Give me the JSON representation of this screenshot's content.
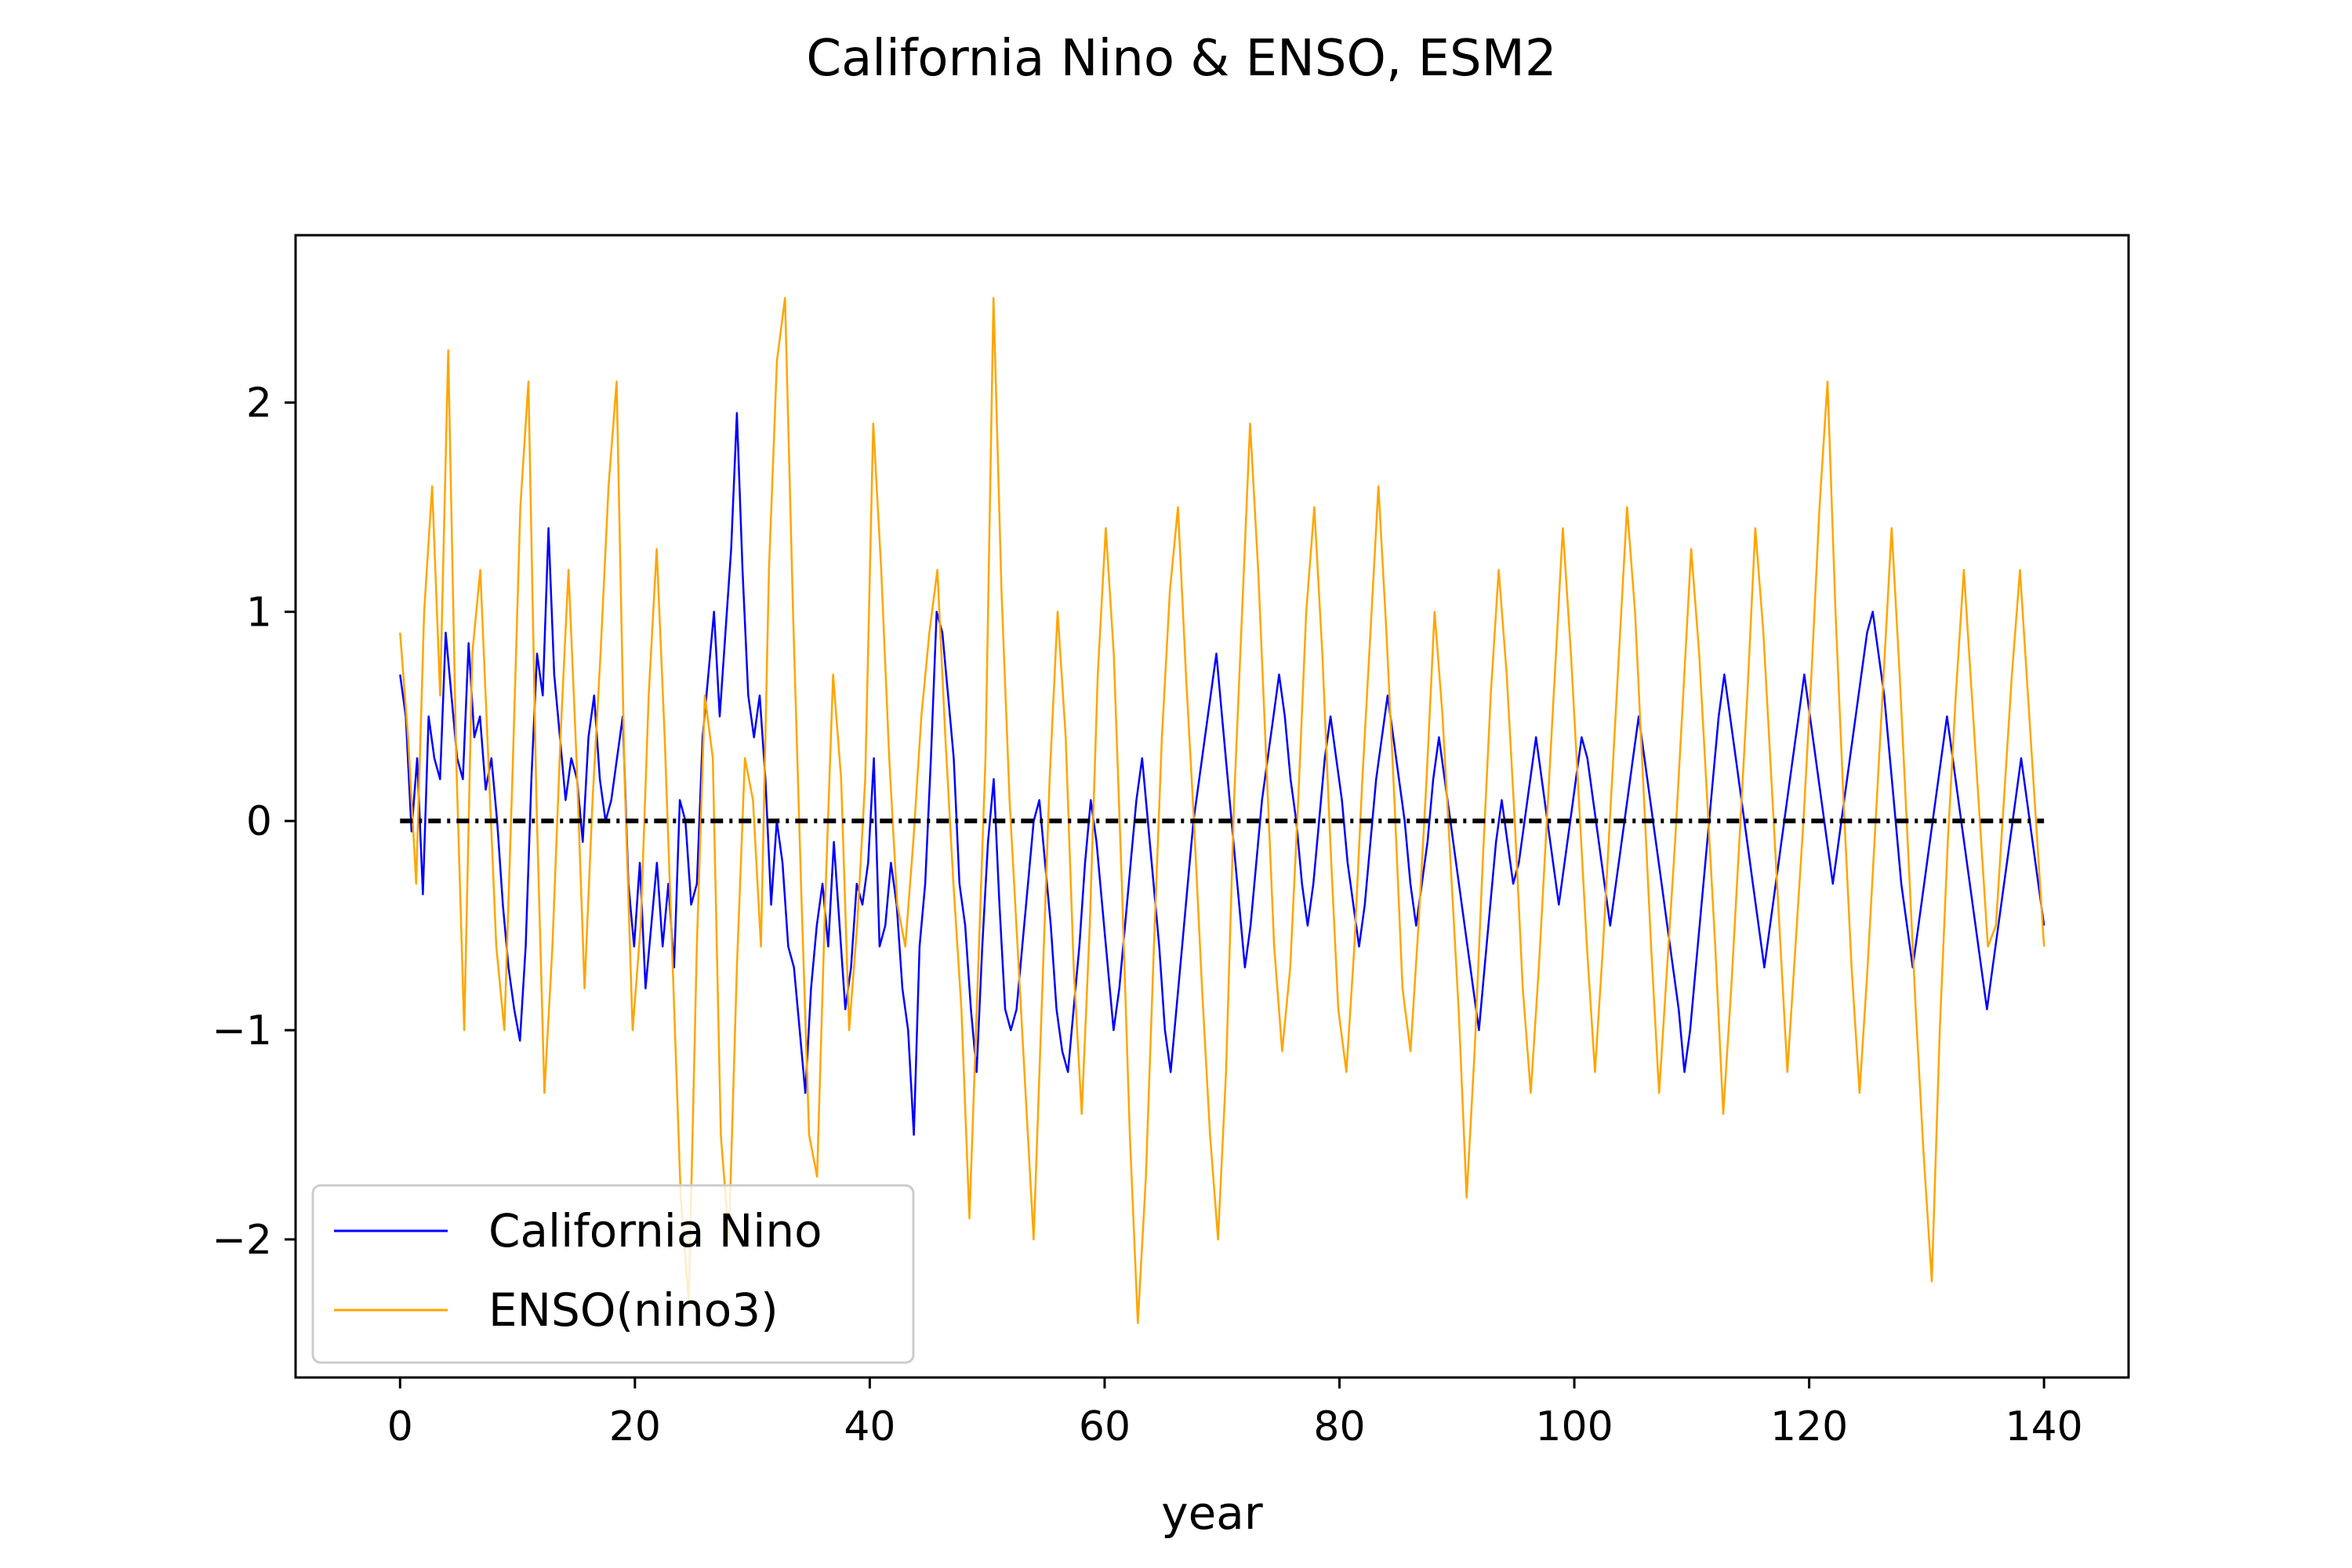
{
  "chart_data": {
    "type": "line",
    "title": "California Nino & ENSO, ESM2",
    "xlabel": "year",
    "ylabel": "",
    "xlim": [
      -8.9,
      147.2
    ],
    "ylim": [
      -2.66,
      2.8
    ],
    "x_ticks": [
      0,
      20,
      40,
      60,
      80,
      100,
      120,
      140
    ],
    "x_tick_labels": [
      "0",
      "20",
      "40",
      "60",
      "80",
      "100",
      "120",
      "140"
    ],
    "y_ticks": [
      -2,
      -1,
      0,
      1,
      2
    ],
    "y_tick_labels": [
      "−2",
      "−1",
      "0",
      "1",
      "2"
    ],
    "grid": false,
    "legend_position": "lower-left",
    "x_step_years": 0.5,
    "series": [
      {
        "name": "California Nino",
        "color": "#0000ff",
        "values": [
          0.7,
          0.5,
          -0.05,
          0.3,
          -0.35,
          0.5,
          0.3,
          0.2,
          0.9,
          0.6,
          0.3,
          0.2,
          0.85,
          0.4,
          0.5,
          0.15,
          0.3,
          0.0,
          -0.4,
          -0.7,
          -0.9,
          -1.05,
          -0.6,
          0.2,
          0.8,
          0.6,
          1.4,
          0.7,
          0.4,
          0.1,
          0.3,
          0.2,
          -0.1,
          0.4,
          0.6,
          0.2,
          0.0,
          0.1,
          0.3,
          0.5,
          -0.3,
          -0.6,
          -0.2,
          -0.8,
          -0.5,
          -0.2,
          -0.6,
          -0.3,
          -0.7,
          0.1,
          0.0,
          -0.4,
          -0.3,
          0.4,
          0.7,
          1.0,
          0.5,
          0.9,
          1.3,
          1.95,
          1.2,
          0.6,
          0.4,
          0.6,
          0.2,
          -0.4,
          0.0,
          -0.2,
          -0.6,
          -0.7,
          -1.0,
          -1.3,
          -0.8,
          -0.5,
          -0.3,
          -0.6,
          -0.1,
          -0.5,
          -0.9,
          -0.7,
          -0.3,
          -0.4,
          -0.2,
          0.3,
          -0.6,
          -0.5,
          -0.2,
          -0.4,
          -0.8,
          -1.0,
          -1.5,
          -0.6,
          -0.3,
          0.3,
          1.0,
          0.9,
          0.6,
          0.3,
          -0.3,
          -0.5,
          -0.9,
          -1.2,
          -0.6,
          -0.1,
          0.2,
          -0.4,
          -0.9,
          -1.0,
          -0.9,
          -0.6,
          -0.3,
          0.0,
          0.1,
          -0.2,
          -0.5,
          -0.9,
          -1.1,
          -1.2,
          -0.9,
          -0.6,
          -0.2,
          0.1,
          -0.1,
          -0.4,
          -0.7,
          -1.0,
          -0.8,
          -0.5,
          -0.2,
          0.1,
          0.3,
          0.0,
          -0.3,
          -0.6,
          -1.0,
          -1.2,
          -0.9,
          -0.6,
          -0.3,
          0.0,
          0.2,
          0.4,
          0.6,
          0.8,
          0.5,
          0.2,
          -0.1,
          -0.4,
          -0.7,
          -0.5,
          -0.2,
          0.1,
          0.3,
          0.5,
          0.7,
          0.5,
          0.2,
          0.0,
          -0.3,
          -0.5,
          -0.3,
          0.0,
          0.3,
          0.5,
          0.3,
          0.1,
          -0.2,
          -0.4,
          -0.6,
          -0.4,
          -0.1,
          0.2,
          0.4,
          0.6,
          0.4,
          0.2,
          0.0,
          -0.3,
          -0.5,
          -0.3,
          -0.1,
          0.2,
          0.4,
          0.2,
          0.0,
          -0.2,
          -0.4,
          -0.6,
          -0.8,
          -1.0,
          -0.7,
          -0.4,
          -0.1,
          0.1,
          -0.1,
          -0.3,
          -0.2,
          0.0,
          0.2,
          0.4,
          0.2,
          0.0,
          -0.2,
          -0.4,
          -0.2,
          0.0,
          0.2,
          0.4,
          0.3,
          0.1,
          -0.1,
          -0.3,
          -0.5,
          -0.3,
          -0.1,
          0.1,
          0.3,
          0.5,
          0.3,
          0.1,
          -0.1,
          -0.3,
          -0.5,
          -0.7,
          -0.9,
          -1.2,
          -1.0,
          -0.7,
          -0.4,
          -0.1,
          0.2,
          0.5,
          0.7,
          0.5,
          0.3,
          0.1,
          -0.1,
          -0.3,
          -0.5,
          -0.7,
          -0.5,
          -0.3,
          -0.1,
          0.1,
          0.3,
          0.5,
          0.7,
          0.5,
          0.3,
          0.1,
          -0.1,
          -0.3,
          -0.1,
          0.1,
          0.3,
          0.5,
          0.7,
          0.9,
          1.0,
          0.8,
          0.6,
          0.3,
          0.0,
          -0.3,
          -0.5,
          -0.7,
          -0.5,
          -0.3,
          -0.1,
          0.1,
          0.3,
          0.5,
          0.3,
          0.1,
          -0.1,
          -0.3,
          -0.5,
          -0.7,
          -0.9,
          -0.7,
          -0.5,
          -0.3,
          -0.1,
          0.1,
          0.3,
          0.1,
          -0.1,
          -0.3,
          -0.5
        ]
      },
      {
        "name": "ENSO(nino3)",
        "color": "#ffa500",
        "values": [
          0.9,
          0.4,
          -0.3,
          1.0,
          1.6,
          0.6,
          2.25,
          0.3,
          -1.0,
          0.8,
          1.2,
          0.3,
          -0.6,
          -1.0,
          0.2,
          1.5,
          2.1,
          0.1,
          -1.3,
          -0.6,
          0.4,
          1.2,
          0.3,
          -0.8,
          0.1,
          0.8,
          1.6,
          2.1,
          0.2,
          -1.0,
          -0.5,
          0.6,
          1.3,
          0.4,
          -0.7,
          -1.8,
          -2.3,
          -0.6,
          0.6,
          0.3,
          -1.5,
          -2.0,
          -0.7,
          0.3,
          0.1,
          -0.6,
          1.2,
          2.2,
          2.5,
          1.0,
          -0.3,
          -1.5,
          -1.7,
          -0.4,
          0.7,
          0.2,
          -1.0,
          -0.5,
          0.2,
          1.9,
          1.2,
          0.3,
          -0.4,
          -0.6,
          -0.1,
          0.5,
          0.9,
          1.2,
          0.4,
          -0.3,
          -0.9,
          -1.9,
          -0.8,
          0.3,
          2.5,
          1.1,
          0.1,
          -0.6,
          -1.3,
          -2.0,
          -0.9,
          0.2,
          1.0,
          0.4,
          -0.7,
          -1.4,
          -0.5,
          0.7,
          1.4,
          0.8,
          -0.3,
          -1.5,
          -2.4,
          -1.7,
          -0.6,
          0.4,
          1.1,
          1.5,
          0.7,
          0.0,
          -0.8,
          -1.5,
          -2.0,
          -1.2,
          0.1,
          1.0,
          1.9,
          1.2,
          0.3,
          -0.6,
          -1.1,
          -0.7,
          0.1,
          1.0,
          1.5,
          0.8,
          -0.1,
          -0.9,
          -1.2,
          -0.6,
          0.2,
          0.9,
          1.6,
          0.9,
          0.1,
          -0.8,
          -1.1,
          -0.5,
          0.2,
          1.0,
          0.5,
          -0.2,
          -0.9,
          -1.8,
          -1.1,
          -0.2,
          0.6,
          1.2,
          0.7,
          0.0,
          -0.8,
          -1.3,
          -0.7,
          0.0,
          0.7,
          1.4,
          0.8,
          0.1,
          -0.6,
          -1.2,
          -0.6,
          0.1,
          0.8,
          1.5,
          1.0,
          0.2,
          -0.6,
          -1.3,
          -0.7,
          -0.1,
          0.6,
          1.3,
          0.8,
          0.1,
          -0.6,
          -1.4,
          -0.8,
          -0.1,
          0.6,
          1.4,
          0.9,
          0.2,
          -0.5,
          -1.2,
          -0.6,
          0.0,
          0.7,
          1.5,
          2.1,
          1.0,
          0.1,
          -0.7,
          -1.3,
          -0.7,
          0.0,
          0.7,
          1.4,
          0.7,
          -0.1,
          -0.9,
          -1.6,
          -2.2,
          -1.0,
          -0.1,
          0.6,
          1.2,
          0.6,
          0.0,
          -0.6,
          -0.5,
          0.1,
          0.7,
          1.2,
          0.6,
          0.0,
          -0.6
        ]
      }
    ]
  }
}
